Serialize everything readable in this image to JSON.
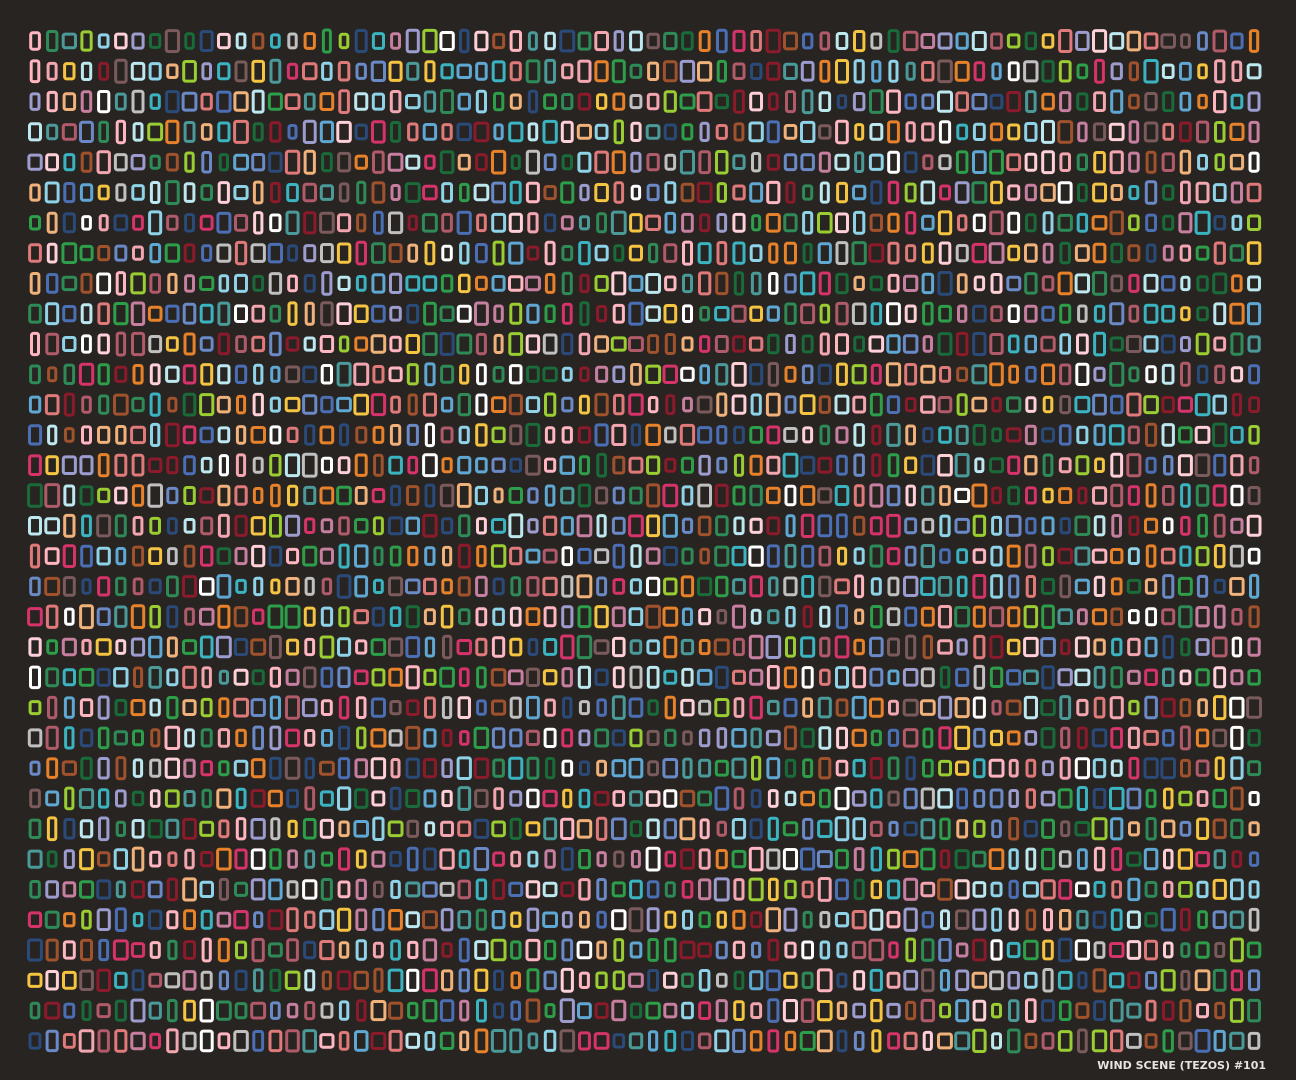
{
  "caption": "WIND SCENE (TEZOS) #101"
}
